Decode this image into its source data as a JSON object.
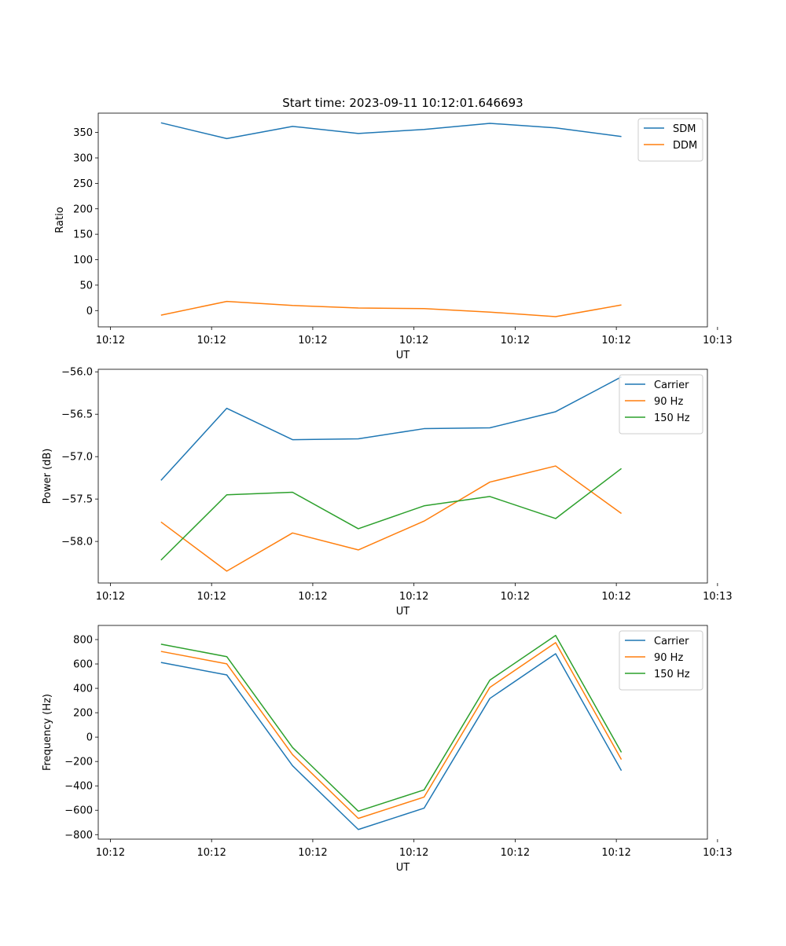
{
  "figure": {
    "title": "Start time: 2023-09-11 10:12:01.646693"
  },
  "colors": {
    "blue": "#1f77b4",
    "orange": "#ff7f0e",
    "green": "#2ca02c"
  },
  "chart_data": [
    {
      "type": "line",
      "title": "Start time: 2023-09-11 10:12:01.646693",
      "xlabel": "UT",
      "ylabel": "Ratio",
      "x": [
        0.5,
        1.15,
        1.8,
        2.45,
        3.1,
        3.75,
        4.4,
        5.05
      ],
      "xlim": [
        -0.12,
        5.9
      ],
      "xticks": [
        0,
        1,
        2,
        3,
        4,
        5,
        6
      ],
      "xtick_labels": [
        "10:12",
        "10:12",
        "10:12",
        "10:12",
        "10:12",
        "10:12",
        "10:13"
      ],
      "ylim": [
        -32,
        388
      ],
      "yticks": [
        0,
        50,
        100,
        150,
        200,
        250,
        300,
        350
      ],
      "ytick_labels": [
        "0",
        "50",
        "100",
        "150",
        "200",
        "250",
        "300",
        "350"
      ],
      "legend": "top-right",
      "series": [
        {
          "name": "SDM",
          "color": "#1f77b4",
          "values": [
            369,
            338,
            362,
            348,
            356,
            368,
            359,
            342
          ]
        },
        {
          "name": "DDM",
          "color": "#ff7f0e",
          "values": [
            -9,
            18,
            10,
            5,
            4,
            -3,
            -12,
            11
          ]
        }
      ]
    },
    {
      "type": "line",
      "xlabel": "UT",
      "ylabel": "Power (dB)",
      "x": [
        0.5,
        1.15,
        1.8,
        2.45,
        3.1,
        3.75,
        4.4,
        5.05
      ],
      "xlim": [
        -0.12,
        5.9
      ],
      "xticks": [
        0,
        1,
        2,
        3,
        4,
        5,
        6
      ],
      "xtick_labels": [
        "10:12",
        "10:12",
        "10:12",
        "10:12",
        "10:12",
        "10:12",
        "10:13"
      ],
      "ylim": [
        -58.49,
        -55.97
      ],
      "yticks": [
        -58.0,
        -57.5,
        -57.0,
        -56.5,
        -56.0
      ],
      "ytick_labels": [
        "−58.0",
        "−57.5",
        "−57.0",
        "−56.5",
        "−56.0"
      ],
      "legend": "top-right",
      "series": [
        {
          "name": "Carrier",
          "color": "#1f77b4",
          "values": [
            -57.28,
            -56.43,
            -56.8,
            -56.79,
            -56.67,
            -56.66,
            -56.47,
            -56.06
          ]
        },
        {
          "name": "90 Hz",
          "color": "#ff7f0e",
          "values": [
            -57.77,
            -58.35,
            -57.9,
            -58.1,
            -57.76,
            -57.3,
            -57.11,
            -57.67
          ]
        },
        {
          "name": "150 Hz",
          "color": "#2ca02c",
          "values": [
            -58.22,
            -57.45,
            -57.42,
            -57.85,
            -57.58,
            -57.47,
            -57.73,
            -57.14
          ]
        }
      ]
    },
    {
      "type": "line",
      "xlabel": "UT",
      "ylabel": "Frequency (Hz)",
      "x": [
        0.5,
        1.15,
        1.8,
        2.45,
        3.1,
        3.75,
        4.4,
        5.05
      ],
      "xlim": [
        -0.12,
        5.9
      ],
      "xticks": [
        0,
        1,
        2,
        3,
        4,
        5,
        6
      ],
      "xtick_labels": [
        "10:12",
        "10:12",
        "10:12",
        "10:12",
        "10:12",
        "10:12",
        "10:13"
      ],
      "ylim": [
        -837,
        916
      ],
      "yticks": [
        -800,
        -600,
        -400,
        -200,
        0,
        200,
        400,
        600,
        800
      ],
      "ytick_labels": [
        "−800",
        "−600",
        "−400",
        "−200",
        "0",
        "200",
        "400",
        "600",
        "800"
      ],
      "legend": "top-right",
      "series": [
        {
          "name": "Carrier",
          "color": "#1f77b4",
          "values": [
            612,
            510,
            -235,
            -758,
            -583,
            317,
            684,
            -275
          ]
        },
        {
          "name": "90 Hz",
          "color": "#ff7f0e",
          "values": [
            703,
            601,
            -144,
            -667,
            -492,
            408,
            775,
            -184
          ]
        },
        {
          "name": "150 Hz",
          "color": "#2ca02c",
          "values": [
            762,
            660,
            -85,
            -608,
            -433,
            467,
            834,
            -125
          ]
        }
      ]
    }
  ]
}
